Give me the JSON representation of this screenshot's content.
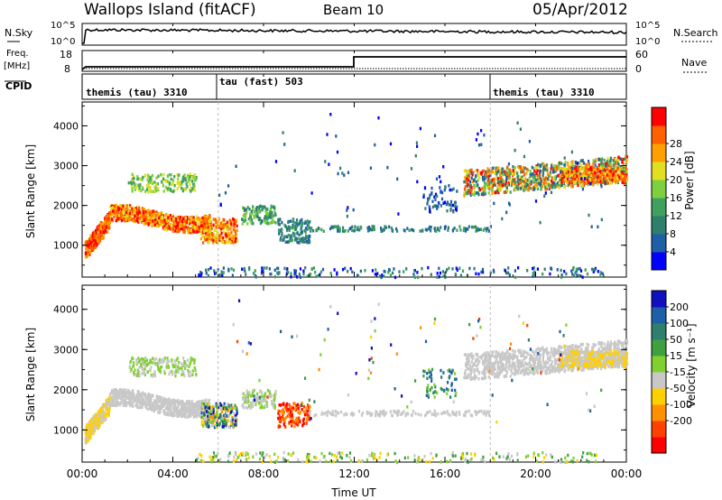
{
  "header": {
    "station": "Wallops Island (fitACF)",
    "beam": "Beam 10",
    "date": "05/Apr/2012"
  },
  "strip_labels": {
    "nsky": "N.Sky",
    "nsearch": "N.Search",
    "freq_top": "Freq.",
    "freq_unit": "[MHz]",
    "nave": "Nave",
    "cpid": "CPID",
    "nsky_top": "10^5",
    "nsky_bottom": "10^0",
    "nsearch_top": "10^5",
    "nsearch_bottom": "10^0",
    "freq_ticks": [
      "18",
      "8"
    ],
    "nave_ticks": [
      "60",
      "0"
    ]
  },
  "cpid_segments": [
    {
      "label": "themis (tau) 3310",
      "start_hour": 0
    },
    {
      "label": "tau (fast) 503",
      "start_hour": 6
    },
    {
      "label": "themis (tau) 3310",
      "start_hour": 18
    }
  ],
  "chart_data": [
    {
      "type": "heatmap",
      "name": "power",
      "xlabel": "",
      "ylabel": "Slant Range [km]",
      "xlim": [
        0,
        24
      ],
      "ylim": [
        200,
        4600
      ],
      "yticks": [
        "1000",
        "2000",
        "3000",
        "4000"
      ],
      "colorbar": {
        "label": "Power [dB]",
        "ticks": [
          "4",
          "8",
          "12",
          "16",
          "20",
          "24",
          "28"
        ],
        "colors": [
          "#0000ff",
          "#1f5fa8",
          "#2f7f6f",
          "#3fa05f",
          "#7fd040",
          "#e0e020",
          "#ffa000",
          "#ff6000",
          "#ff0000"
        ]
      }
    },
    {
      "type": "heatmap",
      "name": "velocity",
      "xlabel": "Time UT",
      "ylabel": "Slant Range [km]",
      "xlim": [
        0,
        24
      ],
      "ylim": [
        200,
        4600
      ],
      "xticks": [
        "00:00",
        "04:00",
        "08:00",
        "12:00",
        "16:00",
        "20:00",
        "00:00"
      ],
      "yticks": [
        "1000",
        "2000",
        "3000",
        "4000"
      ],
      "colorbar": {
        "label": "Velocity [m s⁻¹]",
        "ticks": [
          "200",
          "100",
          "50",
          "15",
          "-15",
          "-50",
          "-100",
          "-200"
        ],
        "colors": [
          "#1010c0",
          "#1f5fa8",
          "#2f7f6f",
          "#3fa040",
          "#80d030",
          "#c8c8c8",
          "#ffd000",
          "#ff9000",
          "#ff4000",
          "#ff0000"
        ]
      }
    }
  ]
}
